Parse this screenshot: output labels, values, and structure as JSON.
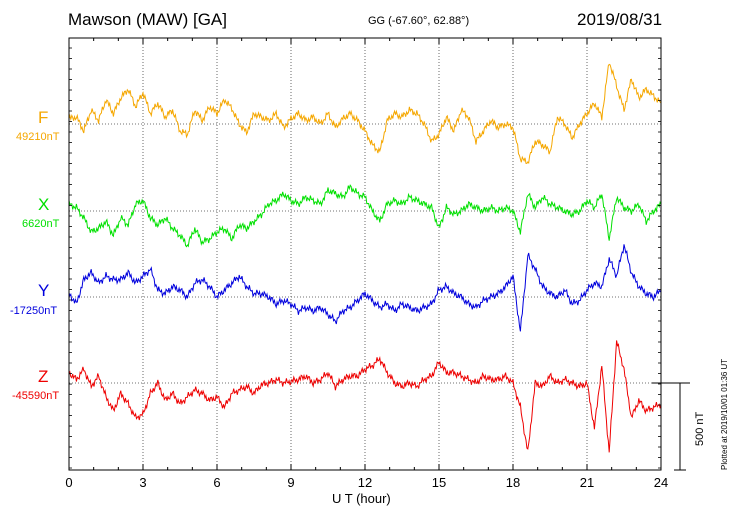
{
  "header": {
    "title": "Mawson (MAW)  [GA]",
    "coords": "GG (-67.60°,  62.88°)",
    "date": "2019/08/31"
  },
  "footer": {
    "plotted": "Plotted at 2019/10/01 01:36 UT",
    "scale_label": "500 nT"
  },
  "chart_data": {
    "type": "line",
    "title": "Mawson (MAW)  [GA]",
    "xlabel": "U T (hour)",
    "ylabel": "",
    "xlim": [
      0,
      24
    ],
    "xticks": [
      "0",
      "3",
      "6",
      "9",
      "12",
      "15",
      "18",
      "21",
      "24"
    ],
    "scale_bar_nT": 500,
    "grid": true,
    "series": [
      {
        "name": "F",
        "baseline_label": "49210nT",
        "color": "#f5a700",
        "baseline_nT": 49210,
        "t": [
          0,
          0.3,
          0.6,
          0.9,
          1.2,
          1.5,
          1.8,
          2.1,
          2.4,
          2.7,
          3.0,
          3.3,
          3.6,
          3.9,
          4.2,
          4.5,
          4.8,
          5.1,
          5.4,
          5.7,
          6.0,
          6.3,
          6.6,
          6.9,
          7.2,
          7.5,
          7.8,
          8.1,
          8.4,
          8.7,
          9.0,
          9.3,
          9.6,
          9.9,
          10.2,
          10.5,
          10.8,
          11.1,
          11.4,
          11.7,
          12.0,
          12.3,
          12.6,
          12.9,
          13.2,
          13.5,
          13.8,
          14.1,
          14.4,
          14.7,
          15.0,
          15.3,
          15.6,
          15.9,
          16.2,
          16.5,
          16.8,
          17.1,
          17.4,
          17.7,
          18.0,
          18.3,
          18.6,
          18.9,
          19.2,
          19.5,
          19.8,
          20.1,
          20.4,
          20.7,
          21.0,
          21.3,
          21.6,
          21.9,
          22.2,
          22.5,
          22.8,
          23.1,
          23.4,
          23.7,
          24.0
        ],
        "v": [
          30,
          40,
          -40,
          80,
          20,
          140,
          60,
          150,
          200,
          100,
          180,
          60,
          120,
          40,
          80,
          -40,
          -60,
          80,
          20,
          100,
          60,
          140,
          90,
          0,
          -50,
          60,
          40,
          20,
          60,
          -20,
          30,
          60,
          20,
          40,
          0,
          60,
          -20,
          30,
          60,
          20,
          -40,
          -120,
          -160,
          20,
          60,
          40,
          80,
          60,
          0,
          -100,
          -60,
          40,
          -40,
          80,
          40,
          -100,
          -40,
          20,
          -20,
          0,
          -20,
          -200,
          -220,
          -100,
          -120,
          -160,
          40,
          0,
          -80,
          0,
          60,
          120,
          40,
          360,
          220,
          80,
          260,
          150,
          200,
          160,
          120
        ]
      },
      {
        "name": "X",
        "baseline_label": "6620nT",
        "color": "#00e000",
        "baseline_nT": 6620,
        "t": [
          0,
          0.3,
          0.6,
          0.9,
          1.2,
          1.5,
          1.8,
          2.1,
          2.4,
          2.7,
          3.0,
          3.3,
          3.6,
          3.9,
          4.2,
          4.5,
          4.8,
          5.1,
          5.4,
          5.7,
          6.0,
          6.3,
          6.6,
          6.9,
          7.2,
          7.5,
          7.8,
          8.1,
          8.4,
          8.7,
          9.0,
          9.3,
          9.6,
          9.9,
          10.2,
          10.5,
          10.8,
          11.1,
          11.4,
          11.7,
          12.0,
          12.3,
          12.6,
          12.9,
          13.2,
          13.5,
          13.8,
          14.1,
          14.4,
          14.7,
          15.0,
          15.3,
          15.6,
          15.9,
          16.2,
          16.5,
          16.8,
          17.1,
          17.4,
          17.7,
          18.0,
          18.3,
          18.6,
          18.9,
          19.2,
          19.5,
          19.8,
          20.1,
          20.4,
          20.7,
          21.0,
          21.3,
          21.6,
          21.9,
          22.2,
          22.5,
          22.8,
          23.1,
          23.4,
          23.7,
          24.0
        ],
        "v": [
          40,
          20,
          -40,
          -120,
          -100,
          -60,
          -140,
          -40,
          -80,
          40,
          60,
          -40,
          -80,
          -40,
          -100,
          -140,
          -200,
          -100,
          -180,
          -160,
          -120,
          -100,
          -160,
          -80,
          -100,
          -60,
          -20,
          40,
          60,
          100,
          60,
          40,
          80,
          60,
          40,
          120,
          100,
          80,
          140,
          100,
          80,
          0,
          -60,
          40,
          60,
          40,
          80,
          60,
          40,
          20,
          -100,
          20,
          -20,
          0,
          40,
          20,
          0,
          20,
          0,
          20,
          0,
          -120,
          100,
          20,
          80,
          40,
          20,
          0,
          -20,
          0,
          60,
          20,
          100,
          -160,
          80,
          20,
          0,
          40,
          -60,
          0,
          40
        ]
      },
      {
        "name": "Y",
        "baseline_label": "-17250nT",
        "color": "#0000dd",
        "baseline_nT": -17250,
        "t": [
          0,
          0.3,
          0.6,
          0.9,
          1.2,
          1.5,
          1.8,
          2.1,
          2.4,
          2.7,
          3.0,
          3.3,
          3.6,
          3.9,
          4.2,
          4.5,
          4.8,
          5.1,
          5.4,
          5.7,
          6.0,
          6.3,
          6.6,
          6.9,
          7.2,
          7.5,
          7.8,
          8.1,
          8.4,
          8.7,
          9.0,
          9.3,
          9.6,
          9.9,
          10.2,
          10.5,
          10.8,
          11.1,
          11.4,
          11.7,
          12.0,
          12.3,
          12.6,
          12.9,
          13.2,
          13.5,
          13.8,
          14.1,
          14.4,
          14.7,
          15.0,
          15.3,
          15.6,
          15.9,
          16.2,
          16.5,
          16.8,
          17.1,
          17.4,
          17.7,
          18.0,
          18.3,
          18.6,
          18.9,
          19.2,
          19.5,
          19.8,
          20.1,
          20.4,
          20.7,
          21.0,
          21.3,
          21.6,
          21.9,
          22.2,
          22.5,
          22.8,
          23.1,
          23.4,
          23.7,
          24.0
        ],
        "v": [
          20,
          -40,
          100,
          140,
          80,
          120,
          100,
          100,
          140,
          80,
          120,
          160,
          40,
          20,
          60,
          40,
          0,
          80,
          100,
          60,
          0,
          40,
          80,
          120,
          60,
          20,
          20,
          0,
          -40,
          -20,
          -40,
          -80,
          -60,
          -80,
          -60,
          -100,
          -140,
          -80,
          -60,
          -20,
          20,
          -20,
          -60,
          -40,
          -80,
          -40,
          -60,
          -80,
          -60,
          -40,
          40,
          60,
          20,
          0,
          -40,
          -60,
          -20,
          0,
          20,
          60,
          120,
          -200,
          240,
          160,
          60,
          20,
          0,
          40,
          -40,
          -20,
          40,
          80,
          60,
          220,
          120,
          300,
          140,
          60,
          20,
          0,
          40
        ]
      },
      {
        "name": "Z",
        "baseline_label": "-45590nT",
        "color": "#ee0000",
        "baseline_nT": -45590,
        "t": [
          0,
          0.3,
          0.6,
          0.9,
          1.2,
          1.5,
          1.8,
          2.1,
          2.4,
          2.7,
          3.0,
          3.3,
          3.6,
          3.9,
          4.2,
          4.5,
          4.8,
          5.1,
          5.4,
          5.7,
          6.0,
          6.3,
          6.6,
          6.9,
          7.2,
          7.5,
          7.8,
          8.1,
          8.4,
          8.7,
          9.0,
          9.3,
          9.6,
          9.9,
          10.2,
          10.5,
          10.8,
          11.1,
          11.4,
          11.7,
          12.0,
          12.3,
          12.6,
          12.9,
          13.2,
          13.5,
          13.8,
          14.1,
          14.4,
          14.7,
          15.0,
          15.3,
          15.6,
          15.9,
          16.2,
          16.5,
          16.8,
          17.1,
          17.4,
          17.7,
          18.0,
          18.3,
          18.6,
          18.9,
          19.2,
          19.5,
          19.8,
          20.1,
          20.4,
          20.7,
          21.0,
          21.3,
          21.6,
          21.9,
          22.2,
          22.5,
          22.8,
          23.1,
          23.4,
          23.7,
          24.0
        ],
        "v": [
          60,
          20,
          80,
          -20,
          40,
          -80,
          -160,
          -60,
          -120,
          -200,
          -180,
          -60,
          0,
          -100,
          -60,
          -120,
          -80,
          -40,
          -60,
          -100,
          -80,
          -140,
          -60,
          -40,
          -20,
          -60,
          -10,
          0,
          20,
          0,
          10,
          20,
          40,
          0,
          20,
          60,
          -20,
          20,
          40,
          40,
          80,
          100,
          140,
          60,
          0,
          -20,
          0,
          -20,
          20,
          40,
          120,
          60,
          60,
          40,
          20,
          0,
          40,
          20,
          20,
          40,
          0,
          -140,
          -400,
          0,
          -20,
          40,
          0,
          20,
          0,
          -20,
          0,
          -260,
          100,
          -400,
          240,
          80,
          -200,
          -100,
          -160,
          -140,
          -120
        ]
      }
    ]
  }
}
